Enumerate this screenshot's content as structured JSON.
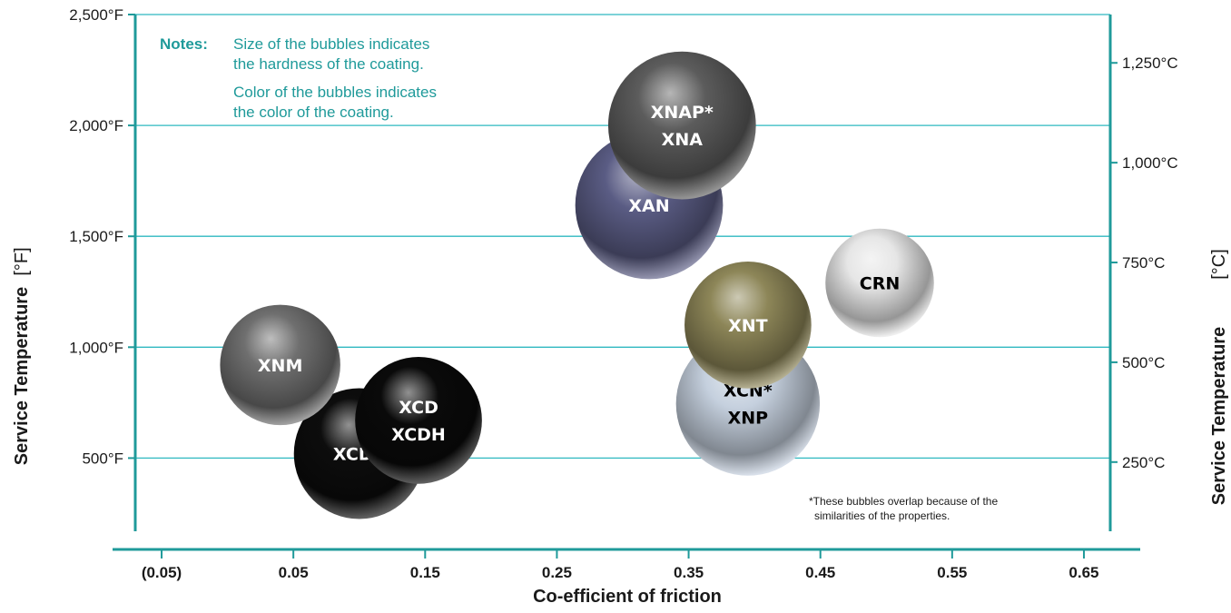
{
  "chart_data": {
    "type": "scatter",
    "subtype": "bubble",
    "xlabel": "Co-efficient of friction",
    "ylabel_left": "Service Temperature",
    "ylabel_left_unit": "[°F]",
    "ylabel_right": "Service Temperature",
    "ylabel_right_unit": "[°C]",
    "xlim": [
      -0.07,
      0.67
    ],
    "ylim_f": [
      170,
      2500
    ],
    "x_ticks": [
      "(0.05)",
      "0.05",
      "0.15",
      "0.25",
      "0.35",
      "0.45",
      "0.55",
      "0.65"
    ],
    "x_tick_values": [
      -0.05,
      0.05,
      0.15,
      0.25,
      0.35,
      0.45,
      0.55,
      0.65
    ],
    "y_left_ticks": [
      "500°F",
      "1,000°F",
      "1,500°F",
      "2,000°F",
      "2,500°F"
    ],
    "y_left_tick_values": [
      500,
      1000,
      1500,
      2000,
      2500
    ],
    "y_right_ticks": [
      "250°C",
      "500°C",
      "750°C",
      "1,000°C",
      "1,250°C"
    ],
    "y_right_tick_values": [
      250,
      500,
      750,
      1000,
      1250
    ],
    "grid": true,
    "notes": {
      "label": "Notes:",
      "lines": [
        "Size of the bubbles indicates",
        "the hardness of the coating.",
        "Color of the bubbles indicates",
        "the color of the coating."
      ]
    },
    "footnote": [
      "*These bubbles overlap because of the",
      "similarities of the properties."
    ],
    "bubbles": [
      {
        "labels": [
          "XCDP"
        ],
        "x": 0.1,
        "y": 520,
        "size": 1.0,
        "color": "#0d0d0d",
        "text_color": "#ffffff"
      },
      {
        "labels": [
          "XNM"
        ],
        "x": 0.04,
        "y": 920,
        "size": 0.92,
        "color": "#6f6f6f",
        "text_color": "#ffffff"
      },
      {
        "labels": [
          "XCD",
          "XCDH"
        ],
        "x": 0.145,
        "y": 670,
        "size": 0.97,
        "color": "#0a0a0a",
        "text_color": "#ffffff"
      },
      {
        "labels": [
          "XAN"
        ],
        "x": 0.32,
        "y": 1640,
        "size": 1.13,
        "color": "#5a5c84",
        "text_color": "#ffffff"
      },
      {
        "labels": [
          "XNAP*",
          "XNA"
        ],
        "x": 0.345,
        "y": 2000,
        "size": 1.13,
        "color": "#5c5c5c",
        "text_color": "#ffffff"
      },
      {
        "labels": [
          "XCN*",
          "XNP"
        ],
        "x": 0.395,
        "y": 745,
        "size": 1.1,
        "color": "#c5d0de",
        "text_color": "#000000"
      },
      {
        "labels": [
          "XNT"
        ],
        "x": 0.395,
        "y": 1100,
        "size": 0.97,
        "color": "#8d8658",
        "text_color": "#ffffff"
      },
      {
        "labels": [
          "CRN"
        ],
        "x": 0.495,
        "y": 1290,
        "size": 0.83,
        "color": "#e6e6e6",
        "text_color": "#000000"
      }
    ]
  },
  "colors": {
    "axis": "#1f9a9a",
    "grid": "#2fb8c0"
  }
}
